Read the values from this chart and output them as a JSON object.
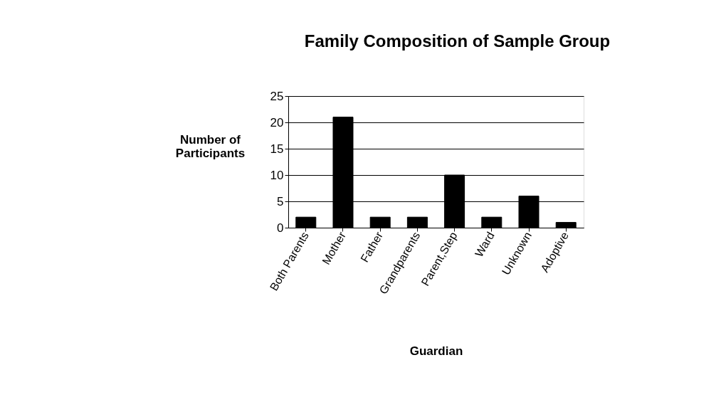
{
  "chart_data": {
    "type": "bar",
    "title": "Family Composition of Sample Group",
    "xlabel": "Guardian",
    "ylabel": "Number of\nParticipants",
    "categories": [
      "Both Parents",
      "Mother",
      "Father",
      "Grandparents",
      "Parent,Step",
      "Ward",
      "Unknown",
      "Adoptive"
    ],
    "values": [
      2,
      21,
      2,
      2,
      10,
      2,
      6,
      1
    ],
    "color": "#000000",
    "ylim": [
      0,
      25
    ],
    "yticks": [
      0,
      5,
      10,
      15,
      20,
      25
    ],
    "grid": "y"
  }
}
